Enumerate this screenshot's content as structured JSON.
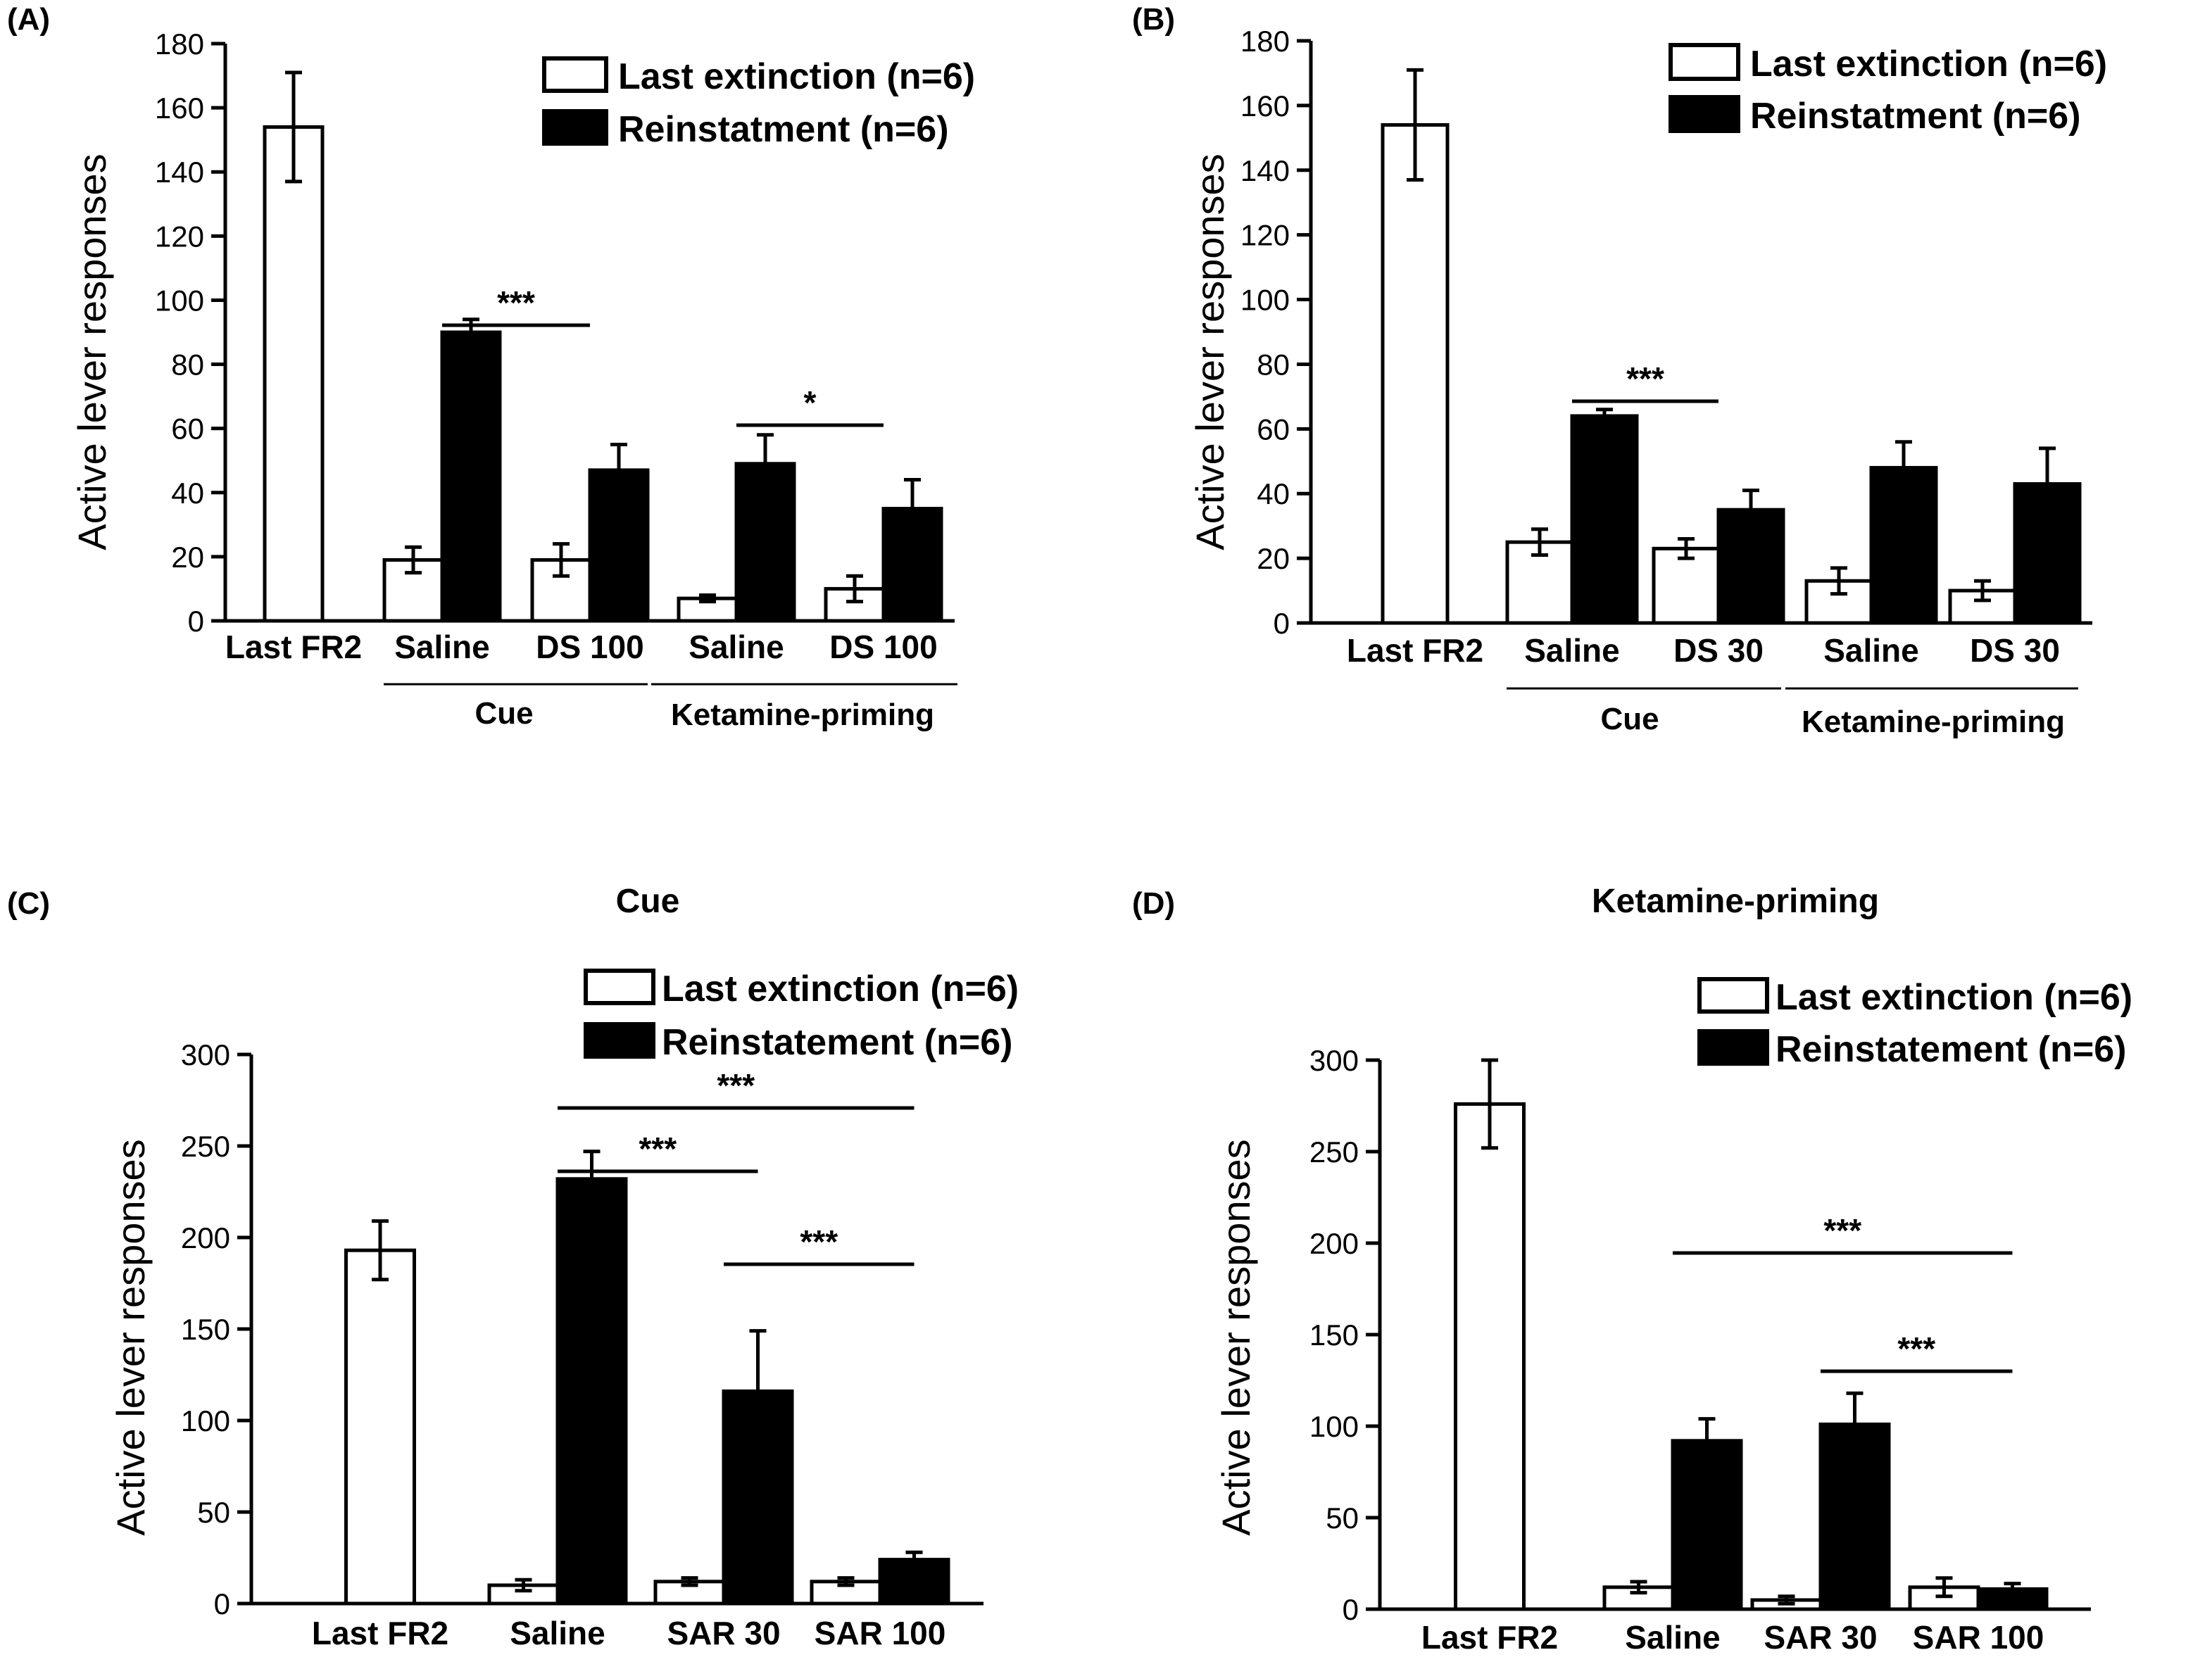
{
  "chart_data": [
    {
      "id": "A",
      "type": "bar",
      "panel_label": "(A)",
      "title": "",
      "ylabel": "Active lever responses",
      "ylim": [
        0,
        180
      ],
      "yticks": [
        0,
        20,
        40,
        60,
        80,
        100,
        120,
        140,
        160,
        180
      ],
      "legend": [
        "Last extinction (n=6)",
        "Reinstatment (n=6)"
      ],
      "categories": [
        "Last FR2",
        "Saline",
        "DS 100",
        "Saline",
        "DS 100"
      ],
      "groups": [
        {
          "label": "Cue",
          "from": 1,
          "to": 2
        },
        {
          "label": "Ketamine-priming",
          "from": 3,
          "to": 4
        }
      ],
      "series": [
        {
          "name": "Last extinction (n=6)",
          "values": [
            154,
            19,
            19,
            7,
            10
          ],
          "errors": [
            17,
            4,
            5,
            1,
            4
          ]
        },
        {
          "name": "Reinstatment (n=6)",
          "values": [
            null,
            90,
            47,
            49,
            35
          ],
          "errors": [
            null,
            4,
            8,
            9,
            9
          ]
        }
      ],
      "significance": [
        {
          "label": "***",
          "from": 1,
          "to": 2,
          "y": 105
        },
        {
          "label": "*",
          "from": 3,
          "to": 4,
          "y": 69
        }
      ]
    },
    {
      "id": "B",
      "type": "bar",
      "panel_label": "(B)",
      "title": "",
      "ylabel": "Active lever responses",
      "ylim": [
        0,
        180
      ],
      "yticks": [
        0,
        20,
        40,
        60,
        80,
        100,
        120,
        140,
        160,
        180
      ],
      "legend": [
        "Last extinction (n=6)",
        "Reinstatment (n=6)"
      ],
      "categories": [
        "Last FR2",
        "Saline",
        "DS 30",
        "Saline",
        "DS 30"
      ],
      "groups": [
        {
          "label": "Cue",
          "from": 1,
          "to": 2
        },
        {
          "label": "Ketamine-priming",
          "from": 3,
          "to": 4
        }
      ],
      "series": [
        {
          "name": "Last extinction (n=6)",
          "values": [
            154,
            25,
            23,
            13,
            10
          ],
          "errors": [
            17,
            4,
            3,
            4,
            3
          ]
        },
        {
          "name": "Reinstatment (n=6)",
          "values": [
            null,
            64,
            35,
            48,
            43
          ],
          "errors": [
            null,
            2,
            6,
            8,
            11
          ]
        }
      ],
      "significance": [
        {
          "label": "***",
          "from": 1,
          "to": 2,
          "y": 78
        }
      ]
    },
    {
      "id": "C",
      "type": "bar",
      "panel_label": "(C)",
      "title": "Cue",
      "ylabel": "Active lever responses",
      "ylim": [
        0,
        300
      ],
      "yticks": [
        0,
        50,
        100,
        150,
        200,
        250,
        300
      ],
      "legend": [
        "Last extinction (n=6)",
        "Reinstatement  (n=6)"
      ],
      "categories": [
        "Last FR2",
        "Saline",
        "SAR 30",
        "SAR 100"
      ],
      "groups": [],
      "series": [
        {
          "name": "Last extinction (n=6)",
          "values": [
            193,
            10,
            12,
            12
          ],
          "errors": [
            16,
            3,
            2,
            2
          ]
        },
        {
          "name": "Reinstatement  (n=6)",
          "values": [
            null,
            232,
            116,
            24
          ],
          "errors": [
            null,
            15,
            33,
            4
          ]
        }
      ],
      "significance": [
        {
          "label": "***",
          "from": 1,
          "to": 3,
          "y": 292
        },
        {
          "label": "***",
          "from": 1,
          "to": 2,
          "y": 256
        },
        {
          "label": "***",
          "from": 2,
          "to": 3,
          "y": 201
        }
      ]
    },
    {
      "id": "D",
      "type": "bar",
      "panel_label": "(D)",
      "title": "Ketamine-priming",
      "ylabel": "Active lever responses",
      "ylim": [
        0,
        300
      ],
      "yticks": [
        0,
        50,
        100,
        150,
        200,
        250,
        300
      ],
      "legend": [
        "Last extinction (n=6)",
        "Reinstatement  (n=6)"
      ],
      "categories": [
        "Last FR2",
        "Saline",
        "SAR 30",
        "SAR 100"
      ],
      "groups": [],
      "series": [
        {
          "name": "Last extinction (n=6)",
          "values": [
            276,
            12,
            5,
            12
          ],
          "errors": [
            24,
            3,
            2,
            5
          ]
        },
        {
          "name": "Reinstatement  (n=6)",
          "values": [
            null,
            92,
            101,
            11
          ],
          "errors": [
            null,
            12,
            17,
            3
          ]
        }
      ],
      "significance": [
        {
          "label": "***",
          "from": 1,
          "to": 3,
          "y": 210
        },
        {
          "label": "***",
          "from": 2,
          "to": 3,
          "y": 139
        }
      ]
    }
  ]
}
